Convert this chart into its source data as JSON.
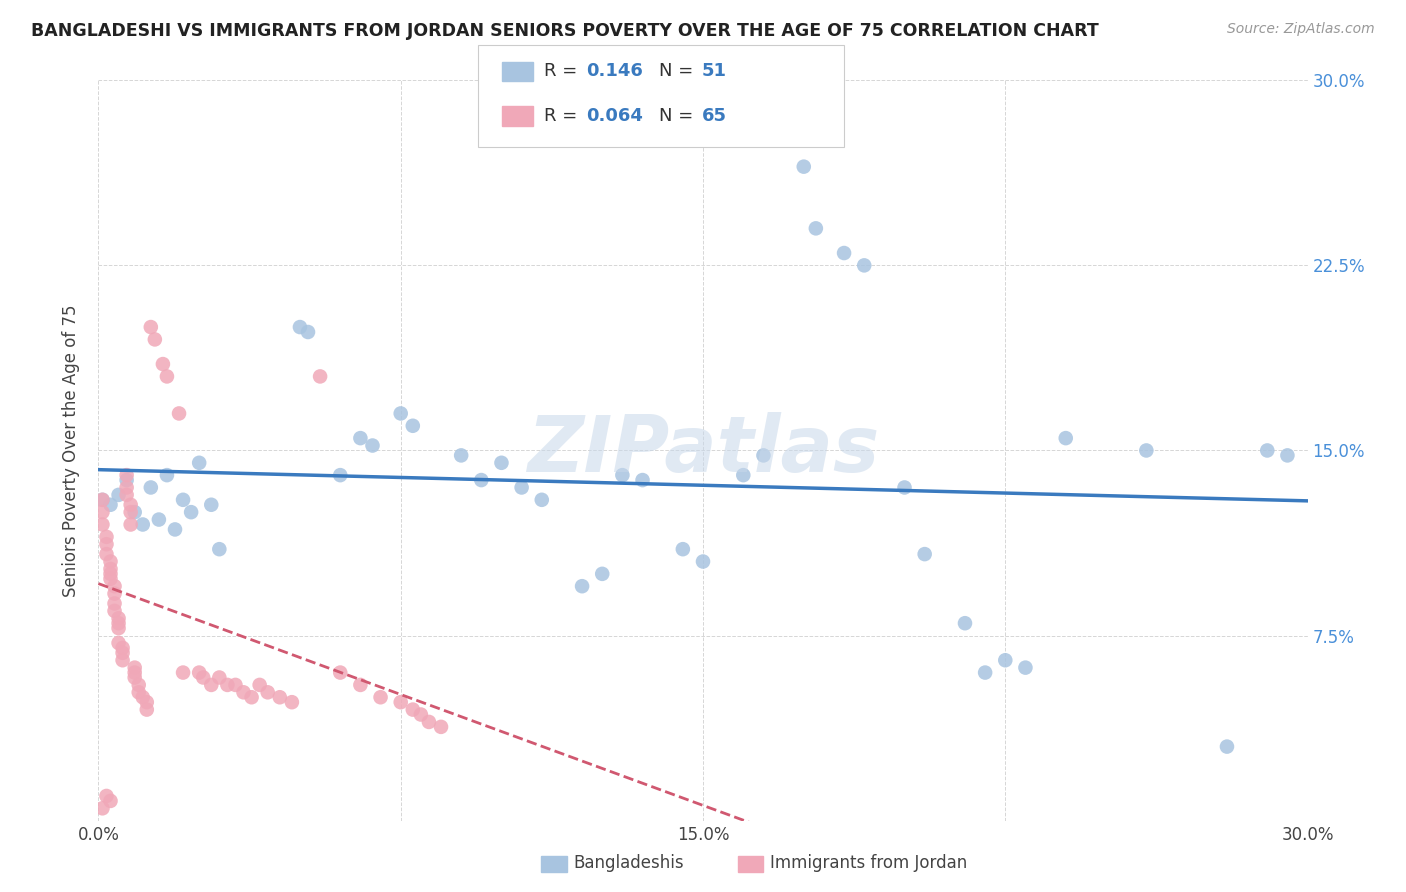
{
  "title": "BANGLADESHI VS IMMIGRANTS FROM JORDAN SENIORS POVERTY OVER THE AGE OF 75 CORRELATION CHART",
  "source": "Source: ZipAtlas.com",
  "ylabel": "Seniors Poverty Over the Age of 75",
  "watermark": "ZIPatlas",
  "xlim": [
    0,
    0.3
  ],
  "ylim": [
    0,
    0.3
  ],
  "blue_color": "#a8c4e0",
  "pink_color": "#f0a8b8",
  "blue_line_color": "#3a7abf",
  "pink_line_color": "#d05870",
  "blue_scatter": [
    [
      0.001,
      0.13
    ],
    [
      0.003,
      0.128
    ],
    [
      0.005,
      0.132
    ],
    [
      0.007,
      0.138
    ],
    [
      0.009,
      0.125
    ],
    [
      0.011,
      0.12
    ],
    [
      0.013,
      0.135
    ],
    [
      0.015,
      0.122
    ],
    [
      0.017,
      0.14
    ],
    [
      0.019,
      0.118
    ],
    [
      0.021,
      0.13
    ],
    [
      0.023,
      0.125
    ],
    [
      0.025,
      0.145
    ],
    [
      0.028,
      0.128
    ],
    [
      0.03,
      0.11
    ],
    [
      0.05,
      0.2
    ],
    [
      0.052,
      0.198
    ],
    [
      0.06,
      0.14
    ],
    [
      0.065,
      0.155
    ],
    [
      0.068,
      0.152
    ],
    [
      0.075,
      0.165
    ],
    [
      0.078,
      0.16
    ],
    [
      0.09,
      0.148
    ],
    [
      0.095,
      0.138
    ],
    [
      0.1,
      0.145
    ],
    [
      0.105,
      0.135
    ],
    [
      0.11,
      0.13
    ],
    [
      0.12,
      0.095
    ],
    [
      0.125,
      0.1
    ],
    [
      0.13,
      0.14
    ],
    [
      0.135,
      0.138
    ],
    [
      0.145,
      0.11
    ],
    [
      0.15,
      0.105
    ],
    [
      0.16,
      0.14
    ],
    [
      0.165,
      0.148
    ],
    [
      0.175,
      0.265
    ],
    [
      0.178,
      0.24
    ],
    [
      0.185,
      0.23
    ],
    [
      0.19,
      0.225
    ],
    [
      0.2,
      0.135
    ],
    [
      0.205,
      0.108
    ],
    [
      0.215,
      0.08
    ],
    [
      0.22,
      0.06
    ],
    [
      0.225,
      0.065
    ],
    [
      0.23,
      0.062
    ],
    [
      0.24,
      0.155
    ],
    [
      0.26,
      0.15
    ],
    [
      0.28,
      0.03
    ],
    [
      0.29,
      0.15
    ],
    [
      0.295,
      0.148
    ]
  ],
  "pink_scatter": [
    [
      0.001,
      0.005
    ],
    [
      0.002,
      0.01
    ],
    [
      0.003,
      0.008
    ],
    [
      0.001,
      0.13
    ],
    [
      0.001,
      0.125
    ],
    [
      0.001,
      0.12
    ],
    [
      0.002,
      0.115
    ],
    [
      0.002,
      0.112
    ],
    [
      0.002,
      0.108
    ],
    [
      0.003,
      0.105
    ],
    [
      0.003,
      0.102
    ],
    [
      0.003,
      0.1
    ],
    [
      0.003,
      0.098
    ],
    [
      0.004,
      0.095
    ],
    [
      0.004,
      0.092
    ],
    [
      0.004,
      0.088
    ],
    [
      0.004,
      0.085
    ],
    [
      0.005,
      0.082
    ],
    [
      0.005,
      0.08
    ],
    [
      0.005,
      0.078
    ],
    [
      0.005,
      0.072
    ],
    [
      0.006,
      0.07
    ],
    [
      0.006,
      0.068
    ],
    [
      0.006,
      0.065
    ],
    [
      0.007,
      0.14
    ],
    [
      0.007,
      0.135
    ],
    [
      0.007,
      0.132
    ],
    [
      0.008,
      0.128
    ],
    [
      0.008,
      0.125
    ],
    [
      0.008,
      0.12
    ],
    [
      0.009,
      0.062
    ],
    [
      0.009,
      0.06
    ],
    [
      0.009,
      0.058
    ],
    [
      0.01,
      0.055
    ],
    [
      0.01,
      0.052
    ],
    [
      0.011,
      0.05
    ],
    [
      0.012,
      0.048
    ],
    [
      0.012,
      0.045
    ],
    [
      0.013,
      0.2
    ],
    [
      0.014,
      0.195
    ],
    [
      0.016,
      0.185
    ],
    [
      0.017,
      0.18
    ],
    [
      0.02,
      0.165
    ],
    [
      0.021,
      0.06
    ],
    [
      0.025,
      0.06
    ],
    [
      0.026,
      0.058
    ],
    [
      0.028,
      0.055
    ],
    [
      0.03,
      0.058
    ],
    [
      0.032,
      0.055
    ],
    [
      0.034,
      0.055
    ],
    [
      0.036,
      0.052
    ],
    [
      0.038,
      0.05
    ],
    [
      0.04,
      0.055
    ],
    [
      0.042,
      0.052
    ],
    [
      0.045,
      0.05
    ],
    [
      0.048,
      0.048
    ],
    [
      0.055,
      0.18
    ],
    [
      0.06,
      0.06
    ],
    [
      0.065,
      0.055
    ],
    [
      0.07,
      0.05
    ],
    [
      0.075,
      0.048
    ],
    [
      0.078,
      0.045
    ],
    [
      0.08,
      0.043
    ],
    [
      0.082,
      0.04
    ],
    [
      0.085,
      0.038
    ]
  ]
}
